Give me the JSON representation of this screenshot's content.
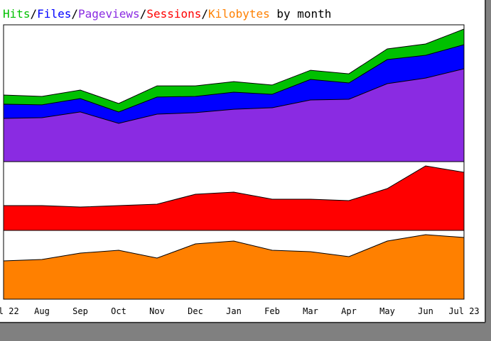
{
  "title": {
    "separator": "/",
    "suffix": " by month"
  },
  "chart_data": [
    {
      "type": "area",
      "ylim": [
        0,
        100
      ],
      "series": [
        {
          "name": "Hits",
          "color": "#00c000",
          "values": [
            48.7,
            47.7,
            52.3,
            42.5,
            55.4,
            55.4,
            58.5,
            56.0,
            66.8,
            64.2,
            82.4,
            86.0,
            96.9
          ]
        },
        {
          "name": "Files",
          "color": "#0000ff",
          "values": [
            42.0,
            41.5,
            46.1,
            36.3,
            47.2,
            47.7,
            50.8,
            49.2,
            60.1,
            57.5,
            74.6,
            77.7,
            85.5
          ]
        },
        {
          "name": "Pageviews",
          "color": "#8a2be2",
          "values": [
            31.6,
            32.1,
            36.3,
            28.0,
            34.7,
            35.8,
            38.3,
            39.4,
            45.1,
            45.6,
            57.0,
            61.1,
            67.9
          ]
        }
      ]
    },
    {
      "type": "area",
      "ylim": [
        0,
        100
      ],
      "series": [
        {
          "name": "Sessions",
          "color": "#ff0000",
          "values": [
            36.1,
            36.1,
            34.0,
            36.1,
            38.1,
            52.6,
            55.7,
            45.4,
            45.4,
            43.3,
            60.8,
            93.8,
            84.5
          ]
        }
      ]
    },
    {
      "type": "area",
      "ylim": [
        0,
        100
      ],
      "categories": [
        "Jul 22",
        "Aug",
        "Sep",
        "Oct",
        "Nov",
        "Dec",
        "Jan",
        "Feb",
        "Mar",
        "Apr",
        "May",
        "Jun",
        "Jul 23"
      ],
      "series": [
        {
          "name": "Kilobytes",
          "color": "#ff8000",
          "values": [
            55.7,
            57.7,
            67.0,
            71.1,
            59.8,
            80.4,
            84.5,
            71.1,
            69.1,
            61.9,
            84.5,
            93.8,
            89.7
          ]
        }
      ]
    }
  ]
}
